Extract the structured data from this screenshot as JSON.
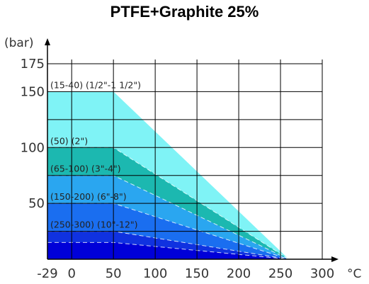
{
  "chart_data": {
    "type": "area",
    "title": "PTFE+Graphite 25%",
    "ylabel": "(bar)",
    "xlabel": "°C",
    "xlim": [
      -29,
      300
    ],
    "ylim": [
      0,
      175
    ],
    "x_ticks": [
      "-29",
      "0",
      "50",
      "100",
      "150",
      "200",
      "250",
      "300"
    ],
    "y_ticks": [
      "50",
      "100",
      "150",
      "175"
    ],
    "grid": true,
    "series": [
      {
        "name": "(15-40) (1/2\"-1 1/2\")",
        "color": "#7ff3f6",
        "points": [
          [
            -29,
            150
          ],
          [
            50,
            150
          ],
          [
            260,
            0
          ]
        ]
      },
      {
        "name": "(50) (2\")",
        "color": "#1cb8b0",
        "points": [
          [
            -29,
            100
          ],
          [
            50,
            100
          ],
          [
            260,
            0
          ]
        ]
      },
      {
        "name": "(65-100) (3\"-4\")",
        "color": "#2aa6f0",
        "points": [
          [
            -29,
            75
          ],
          [
            50,
            75
          ],
          [
            260,
            0
          ]
        ]
      },
      {
        "name": "(150-200) (6\"-8\")",
        "color": "#1a6ef0",
        "points": [
          [
            -29,
            50
          ],
          [
            50,
            50
          ],
          [
            260,
            0
          ]
        ]
      },
      {
        "name": "(250-300) (10\"-12\")",
        "color": "#1032e0",
        "points": [
          [
            -29,
            25
          ],
          [
            50,
            25
          ],
          [
            260,
            0
          ]
        ]
      },
      {
        "name": "",
        "color": "#0000d8",
        "points": [
          [
            -29,
            15
          ],
          [
            50,
            15
          ],
          [
            260,
            0
          ]
        ]
      }
    ]
  }
}
